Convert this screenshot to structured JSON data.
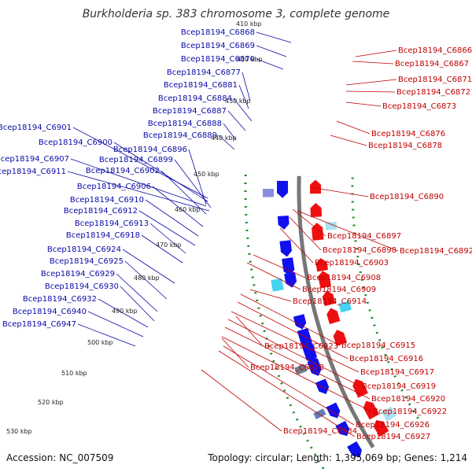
{
  "title": "Burkholderia sp. 383 chromosome 3, complete genome",
  "footer": {
    "accession": "Accession: NC_007509",
    "summary": "Topology: circular; Length: 1,395,069 bp; Genes: 1,214"
  },
  "colors": {
    "forward_label": "#0a0aa8",
    "reverse_label": "#c00000",
    "forward_gene": "#1010ee",
    "reverse_gene": "#ee1010",
    "ticks": "#228822",
    "backbone": "#777777"
  },
  "ticks": [
    "410 kbp",
    "420 kbp",
    "430 kbp",
    "440 kbp",
    "450 kbp",
    "460 kbp",
    "470 kbp",
    "480 kbp",
    "490 kbp",
    "500 kbp",
    "510 kbp",
    "520 kbp",
    "530 kbp"
  ],
  "left_labels": [
    "Bcep18194_C6868",
    "Bcep18194_C6869",
    "Bcep18194_C6870",
    "Bcep18194_C6877",
    "Bcep18194_C6881",
    "Bcep18194_C6884",
    "Bcep18194_C6887",
    "Bcep18194_C6888",
    "Bcep18194_C6889",
    "Bcep18194_C6901",
    "Bcep18194_C6900",
    "Bcep18194_C6896",
    "Bcep18194_C6907",
    "Bcep18194_C6899",
    "Bcep18194_C6911",
    "Bcep18194_C6902",
    "Bcep18194_C6906",
    "Bcep18194_C6910",
    "Bcep18194_C6912",
    "Bcep18194_C6913",
    "Bcep18194_C6918",
    "Bcep18194_C6924",
    "Bcep18194_C6925",
    "Bcep18194_C6929",
    "Bcep18194_C6930",
    "Bcep18194_C6932",
    "Bcep18194_C6940",
    "Bcep18194_C6947"
  ],
  "right_labels": [
    "Bcep18194_C6866",
    "Bcep18194_C6867",
    "Bcep18194_C6871",
    "Bcep18194_C6872",
    "Bcep18194_C6873",
    "Bcep18194_C6876",
    "Bcep18194_C6878",
    "Bcep18194_C6890",
    "Bcep18194_C6897",
    "Bcep18194_C6898",
    "Bcep18194_C6892",
    "Bcep18194_C6903",
    "Bcep18194_C6908",
    "Bcep18194_C6909",
    "Bcep18194_C6914",
    "Bcep18194_C6923",
    "Bcep18194_C6915",
    "Bcep18194_C6916",
    "Bcep18194_C6928",
    "Bcep18194_C6917",
    "Bcep18194_C6919",
    "Bcep18194_C6920",
    "Bcep18194_C6922",
    "Bcep18194_C6926",
    "Bcep18194_C6934",
    "Bcep18194_C6927"
  ]
}
